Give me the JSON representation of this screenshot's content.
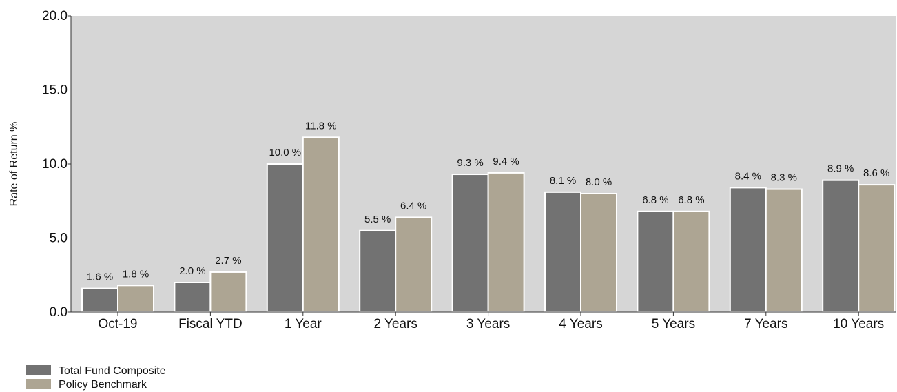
{
  "chart_data": {
    "type": "bar",
    "title": "",
    "xlabel": "",
    "ylabel": "Rate of Return %",
    "ylim": [
      0,
      20
    ],
    "yticks": [
      "0.0",
      "5.0",
      "10.0",
      "15.0",
      "20.0"
    ],
    "ytick_values": [
      0,
      5,
      10,
      15,
      20
    ],
    "grid": false,
    "legend_position": "bottom-left",
    "categories": [
      "Oct-19",
      "Fiscal YTD",
      "1 Year",
      "2 Years",
      "3 Years",
      "4 Years",
      "5 Years",
      "7 Years",
      "10 Years"
    ],
    "series": [
      {
        "name": "Total Fund Composite",
        "color": "#727272",
        "values": [
          1.6,
          2.0,
          10.0,
          5.5,
          9.3,
          8.1,
          6.8,
          8.4,
          8.9
        ],
        "labels": [
          "1.6 %",
          "2.0 %",
          "10.0 %",
          "5.5 %",
          "9.3 %",
          "8.1 %",
          "6.8 %",
          "8.4 %",
          "8.9 %"
        ]
      },
      {
        "name": "Policy Benchmark",
        "color": "#ada593",
        "values": [
          1.8,
          2.7,
          11.8,
          6.4,
          9.4,
          8.0,
          6.8,
          8.3,
          8.6
        ],
        "labels": [
          "1.8 %",
          "2.7 %",
          "11.8 %",
          "6.4 %",
          "9.4 %",
          "8.0 %",
          "6.8 %",
          "8.3 %",
          "8.6 %"
        ]
      }
    ],
    "plot_background": "#d6d6d6"
  }
}
